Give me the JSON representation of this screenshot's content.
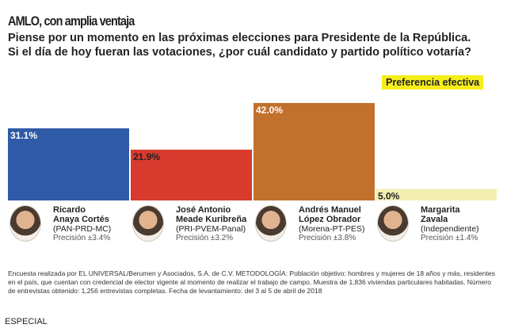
{
  "title": "AMLO, con amplia ventaja",
  "question": [
    "Piense por un momento en las próximas elecciones para Presidente de la República.",
    "Si el día de hoy fueran las votaciones, ¿por cuál candidato y partido político votaría?"
  ],
  "legend": "Preferencia efectiva",
  "chart_data": {
    "type": "bar",
    "categories": [
      "Ricardo Anaya Cortés",
      "José Antonio Meade Kuribreña",
      "Andrés Manuel López Obrador",
      "Margarita Zavala"
    ],
    "values": [
      31.1,
      21.9,
      42.0,
      5.0
    ],
    "labels": [
      "31.1%",
      "21.9%",
      "42.0%",
      "5.0%"
    ],
    "colors": [
      "#2f5aa8",
      "#d83a2e",
      "#c1712c",
      "#f3efb2"
    ],
    "label_colors": [
      "#ffffff",
      "#222222",
      "#ffffff",
      "#222222"
    ],
    "ylim": [
      0,
      42
    ]
  },
  "candidates": [
    {
      "name1": "Ricardo",
      "name2": "Anaya Cortés",
      "party": "(PAN-PRD-MC)",
      "precision": "Precisión ±3.4%"
    },
    {
      "name1": "José Antonio",
      "name2": "Meade Kuribreña",
      "party": "(PRI-PVEM-Panal)",
      "precision": "Precisión ±3.2%"
    },
    {
      "name1": "Andrés Manuel",
      "name2": "López Obrador",
      "party": "(Morena-PT-PES)",
      "precision": "Precisión ±3.8%"
    },
    {
      "name1": "Margarita",
      "name2": "Zavala",
      "party": "(Independiente)",
      "precision": "Precisión ±1.4%"
    }
  ],
  "note": "Encuesta realizada por EL UNIVERSAL/Berumen y Asociados, S.A. de C.V. METODOLOGÍA: Población objetivo: hombres y mujeres de 18 años y más, residentes en el país, que cuentan con credencial de elector vigente al momento de realizar el trabajo de campo. Muestra de 1,836 viviendas particulares habitadas. Número de entrevistas obtenido: 1,256  entrevistas completas. Fecha de levantamiento: del 3 al 5 de abril de 2018",
  "source": "ESPECIAL"
}
